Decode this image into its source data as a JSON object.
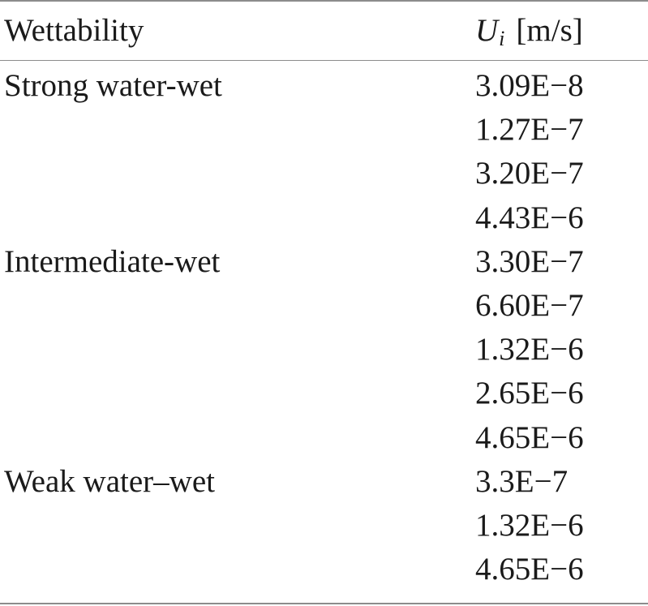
{
  "table": {
    "header": {
      "col1": "Wettability",
      "col2_symbol": "U",
      "col2_subscript": "i",
      "col2_unit": "[m/s]"
    },
    "rows": [
      {
        "wettability": "Strong water-wet",
        "ui": "3.09E−8"
      },
      {
        "wettability": "",
        "ui": "1.27E−7"
      },
      {
        "wettability": "",
        "ui": "3.20E−7"
      },
      {
        "wettability": "",
        "ui": "4.43E−6"
      },
      {
        "wettability": "Intermediate-wet",
        "ui": "3.30E−7"
      },
      {
        "wettability": "",
        "ui": "6.60E−7"
      },
      {
        "wettability": "",
        "ui": "1.32E−6"
      },
      {
        "wettability": "",
        "ui": "2.65E−6"
      },
      {
        "wettability": "",
        "ui": "4.65E−6"
      },
      {
        "wettability": "Weak water–wet",
        "ui": "3.3E−7"
      },
      {
        "wettability": "",
        "ui": "1.32E−6"
      },
      {
        "wettability": "",
        "ui": "4.65E−6"
      }
    ]
  }
}
